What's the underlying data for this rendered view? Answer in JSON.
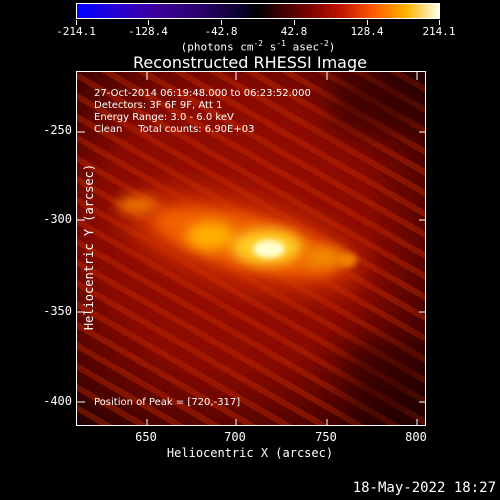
{
  "colorbar": {
    "ticks": [
      "-214.1",
      "-128.4",
      "-42.8",
      "42.8",
      "128.4",
      "214.1"
    ],
    "unit_main": "(photons cm",
    "unit_sup1": "-2",
    "unit_mid1": " s",
    "unit_sup2": "-1",
    "unit_mid2": " asec",
    "unit_sup3": "-2",
    "unit_end": ")"
  },
  "title": "Reconstructed RHESSI Image",
  "info": {
    "line1": "27-Oct-2014 06:19:48.000 to 06:23:52.000",
    "line2": "Detectors: 3F 6F 9F, Att 1",
    "line3": "Energy Range: 3.0 - 6.0 keV",
    "line4": "Clean     Total counts: 6.90E+03",
    "peak": "Position of Peak = [720,-317]"
  },
  "axes": {
    "xlabel": "Heliocentric X (arcsec)",
    "ylabel": "Heliocentric Y (arcsec)",
    "xticks": [
      "650",
      "700",
      "750",
      "800"
    ],
    "yticks": [
      "-250",
      "-300",
      "-350",
      "-400"
    ]
  },
  "datestamp": "18-May-2022 18:27",
  "colors": {
    "background": "#000000",
    "text": "#ffffff"
  }
}
